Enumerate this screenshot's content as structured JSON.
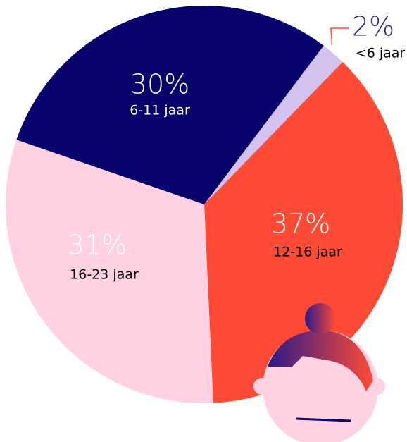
{
  "chart_data": {
    "type": "pie",
    "categories": [
      "<6 jaar",
      "12-16 jaar",
      "16-23 jaar",
      "6-11 jaar"
    ],
    "values": [
      2,
      37,
      31,
      30
    ],
    "value_labels": [
      "2%",
      "37%",
      "31%",
      "30%"
    ],
    "colors": [
      "#d3c2ef",
      "#ff4a36",
      "#ffd1e3",
      "#08006b"
    ]
  }
}
